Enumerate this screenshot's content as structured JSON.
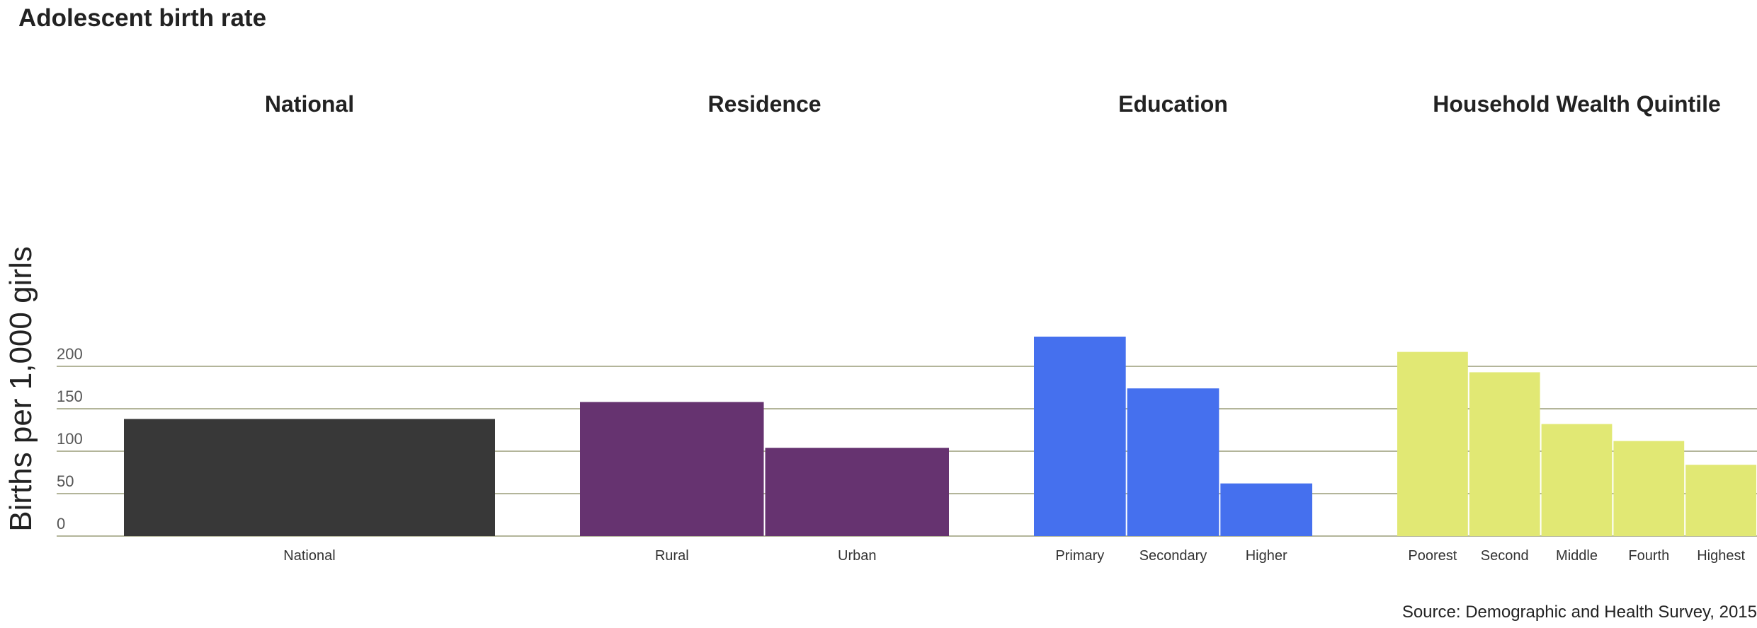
{
  "title": "Adolescent birth rate",
  "source": "Source: Demographic and Health Survey, 2015",
  "chart_data": {
    "type": "bar",
    "title": "Adolescent birth rate",
    "xlabel": "",
    "ylabel": "Births per 1,000 girls",
    "ylim": [
      0,
      235
    ],
    "yticks": [
      0,
      50,
      100,
      150,
      200
    ],
    "grid": true,
    "panels": [
      {
        "name": "National",
        "color": "#383838",
        "categories": [
          "National"
        ],
        "values": [
          138
        ]
      },
      {
        "name": "Residence",
        "color": "#663370",
        "categories": [
          "Rural",
          "Urban"
        ],
        "values": [
          158,
          104
        ]
      },
      {
        "name": "Education",
        "color": "#4570ee",
        "categories": [
          "Primary",
          "Secondary",
          "Higher"
        ],
        "values": [
          235,
          174,
          62
        ]
      },
      {
        "name": "Household Wealth Quintile",
        "color": "#e1e874",
        "categories": [
          "Poorest",
          "Second",
          "Middle",
          "Fourth",
          "Highest"
        ],
        "values": [
          217,
          193,
          132,
          112,
          84
        ]
      }
    ]
  }
}
